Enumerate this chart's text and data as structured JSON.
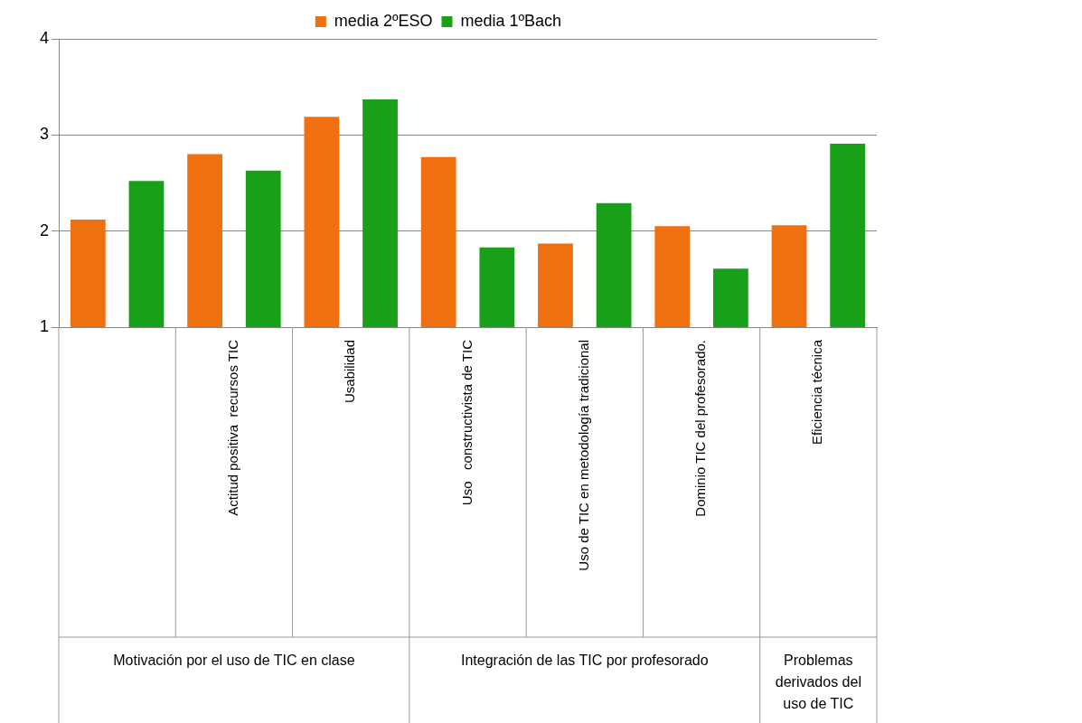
{
  "chart_data": {
    "type": "bar",
    "categories": [
      null,
      "Actitud positiva  recursos TIC",
      "Usabilidad",
      "Uso   constructivista de TIC",
      "Uso de TIC en metodología tradicional",
      "Dominio TIC del profesorado.",
      "Eficiencia técnica"
    ],
    "series": [
      {
        "name": "media 2ºESO",
        "color": "#f07010",
        "values": [
          2.12,
          2.8,
          3.19,
          2.77,
          1.87,
          2.05,
          2.06
        ]
      },
      {
        "name": "media 1ºBach",
        "color": "#18a018",
        "values": [
          2.52,
          2.63,
          3.37,
          1.83,
          2.29,
          1.61,
          2.91
        ]
      }
    ],
    "annotations": [
      "Motivación por el uso de TIC en clase",
      "Integración de las TIC por profesorado",
      "Problemas derivados del uso de TIC"
    ],
    "ylim": [
      1,
      4
    ],
    "yticks": [
      1,
      2,
      3,
      4
    ],
    "grid": "y",
    "legend": "top"
  }
}
